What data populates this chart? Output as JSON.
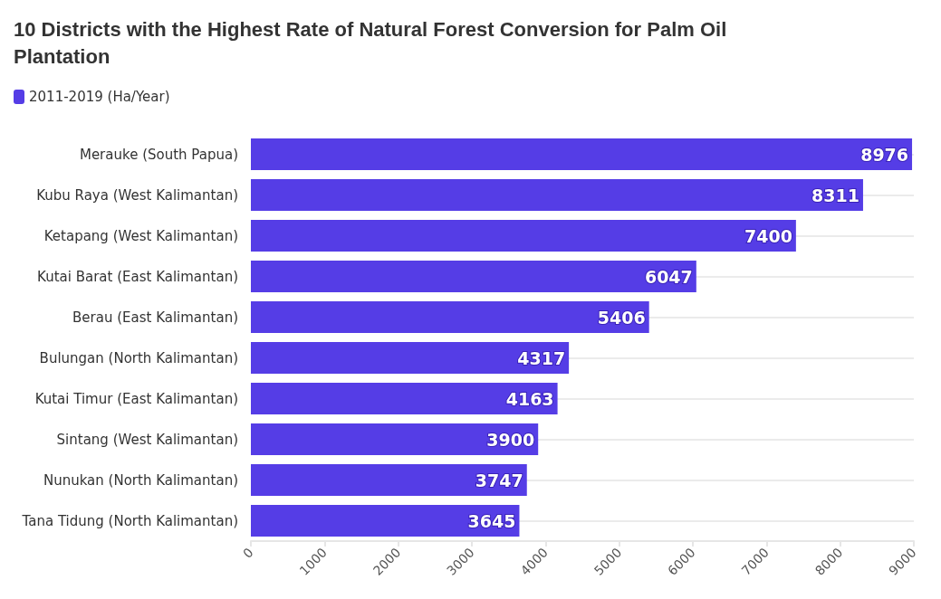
{
  "chart_data": {
    "type": "bar",
    "orientation": "horizontal",
    "title": "10 Districts with the Highest Rate of Natural Forest Conversion for Palm Oil Plantation",
    "categories": [
      "Merauke (South Papua)",
      "Kubu Raya (West Kalimantan)",
      "Ketapang (West Kalimantan)",
      "Kutai Barat (East Kalimantan)",
      "Berau (East Kalimantan)",
      "Bulungan (North Kalimantan)",
      "Kutai Timur (East Kalimantan)",
      "Sintang (West Kalimantan)",
      "Nunukan (North Kalimantan)",
      "Tana Tidung (North Kalimantan)"
    ],
    "series": [
      {
        "name": "2011-2019 (Ha/Year)",
        "color": "#553de6",
        "values": [
          8976,
          8311,
          7400,
          6047,
          5406,
          4317,
          4163,
          3900,
          3747,
          3645
        ]
      }
    ],
    "xlim": [
      0,
      9000
    ],
    "xticks": [
      0,
      1000,
      2000,
      3000,
      4000,
      5000,
      6000,
      7000,
      8000,
      9000
    ],
    "data_labels": true,
    "grid": "y",
    "legend": "top left"
  }
}
